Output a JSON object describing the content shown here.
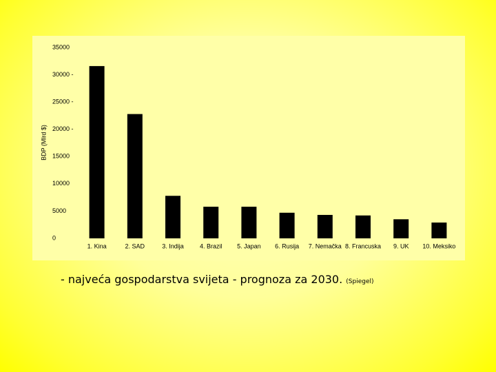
{
  "chart_data": {
    "type": "bar",
    "y_label": "BDP (Mlrd $)",
    "caption": "- najveća gospodarstva svijeta  - prognoza za 2030.",
    "source": "(Spiegel)",
    "categories": [
      "1. Kina",
      "2. SAD",
      "3. Indija",
      "4. Brazil",
      "5. Japan",
      "6. Rusija",
      "7. Nemačka",
      "8. Francuska",
      "9. UK",
      "10. Meksiko"
    ],
    "values": [
      31600,
      22800,
      7800,
      5800,
      5800,
      4700,
      4300,
      4200,
      3500,
      2900
    ],
    "color": "#000000",
    "ylim": [
      0,
      35000
    ],
    "yticks": [
      0,
      5000,
      10000,
      15000,
      {
        "value": 20000,
        "label": "20000 -"
      },
      {
        "value": 25000,
        "label": "25000 -"
      },
      {
        "value": 30000,
        "label": "30000 -"
      },
      35000
    ]
  }
}
